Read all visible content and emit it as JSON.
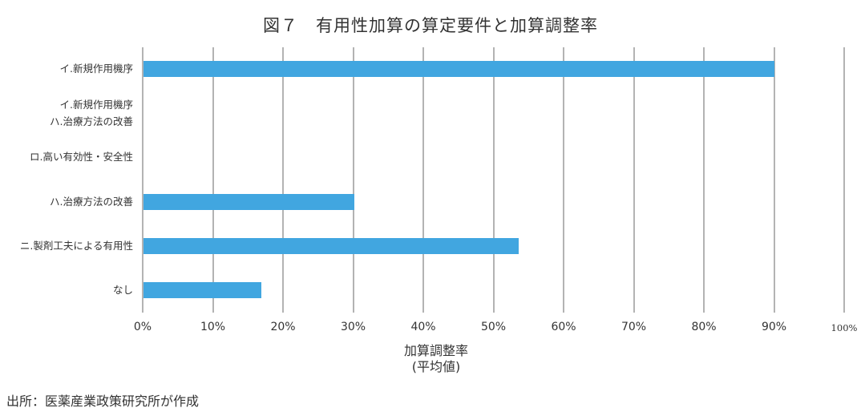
{
  "title": "図７　有用性加算の算定要件と加算調整率",
  "source": "出所：医薬産業政策研究所が作成",
  "chart_data": {
    "type": "bar",
    "orientation": "horizontal",
    "title": "図７　有用性加算の算定要件と加算調整率",
    "categories": [
      "イ.新規作用機序",
      "イ.新規作用機序 / ハ.治療方法の改善",
      "ロ.高い有効性・安全性",
      "ハ.治療方法の改善",
      "ニ.製剤工夫による有用性",
      "なし"
    ],
    "category_lines": [
      [
        "イ.新規作用機序"
      ],
      [
        "イ.新規作用機序",
        "ハ.治療方法の改善"
      ],
      [
        "ロ.高い有効性・安全性"
      ],
      [
        "ハ.治療方法の改善"
      ],
      [
        "ニ.製剤工夫による有用性"
      ],
      [
        "なし"
      ]
    ],
    "values": [
      90,
      null,
      null,
      30.2,
      53.6,
      16.9
    ],
    "xlabel": "加算調整率\n(平均値)",
    "xlabel_lines": [
      "加算調整率",
      "(平均値)"
    ],
    "ylabel": "",
    "xlim": [
      0,
      100
    ],
    "xticks": [
      "0%",
      "10%",
      "20%",
      "30%",
      "40%",
      "50%",
      "60%",
      "70%",
      "80%",
      "90%",
      "100%"
    ],
    "grid": "vertical",
    "legend": null,
    "bar_color": "#41a6e0",
    "grid_color": "#b3b3b3"
  }
}
